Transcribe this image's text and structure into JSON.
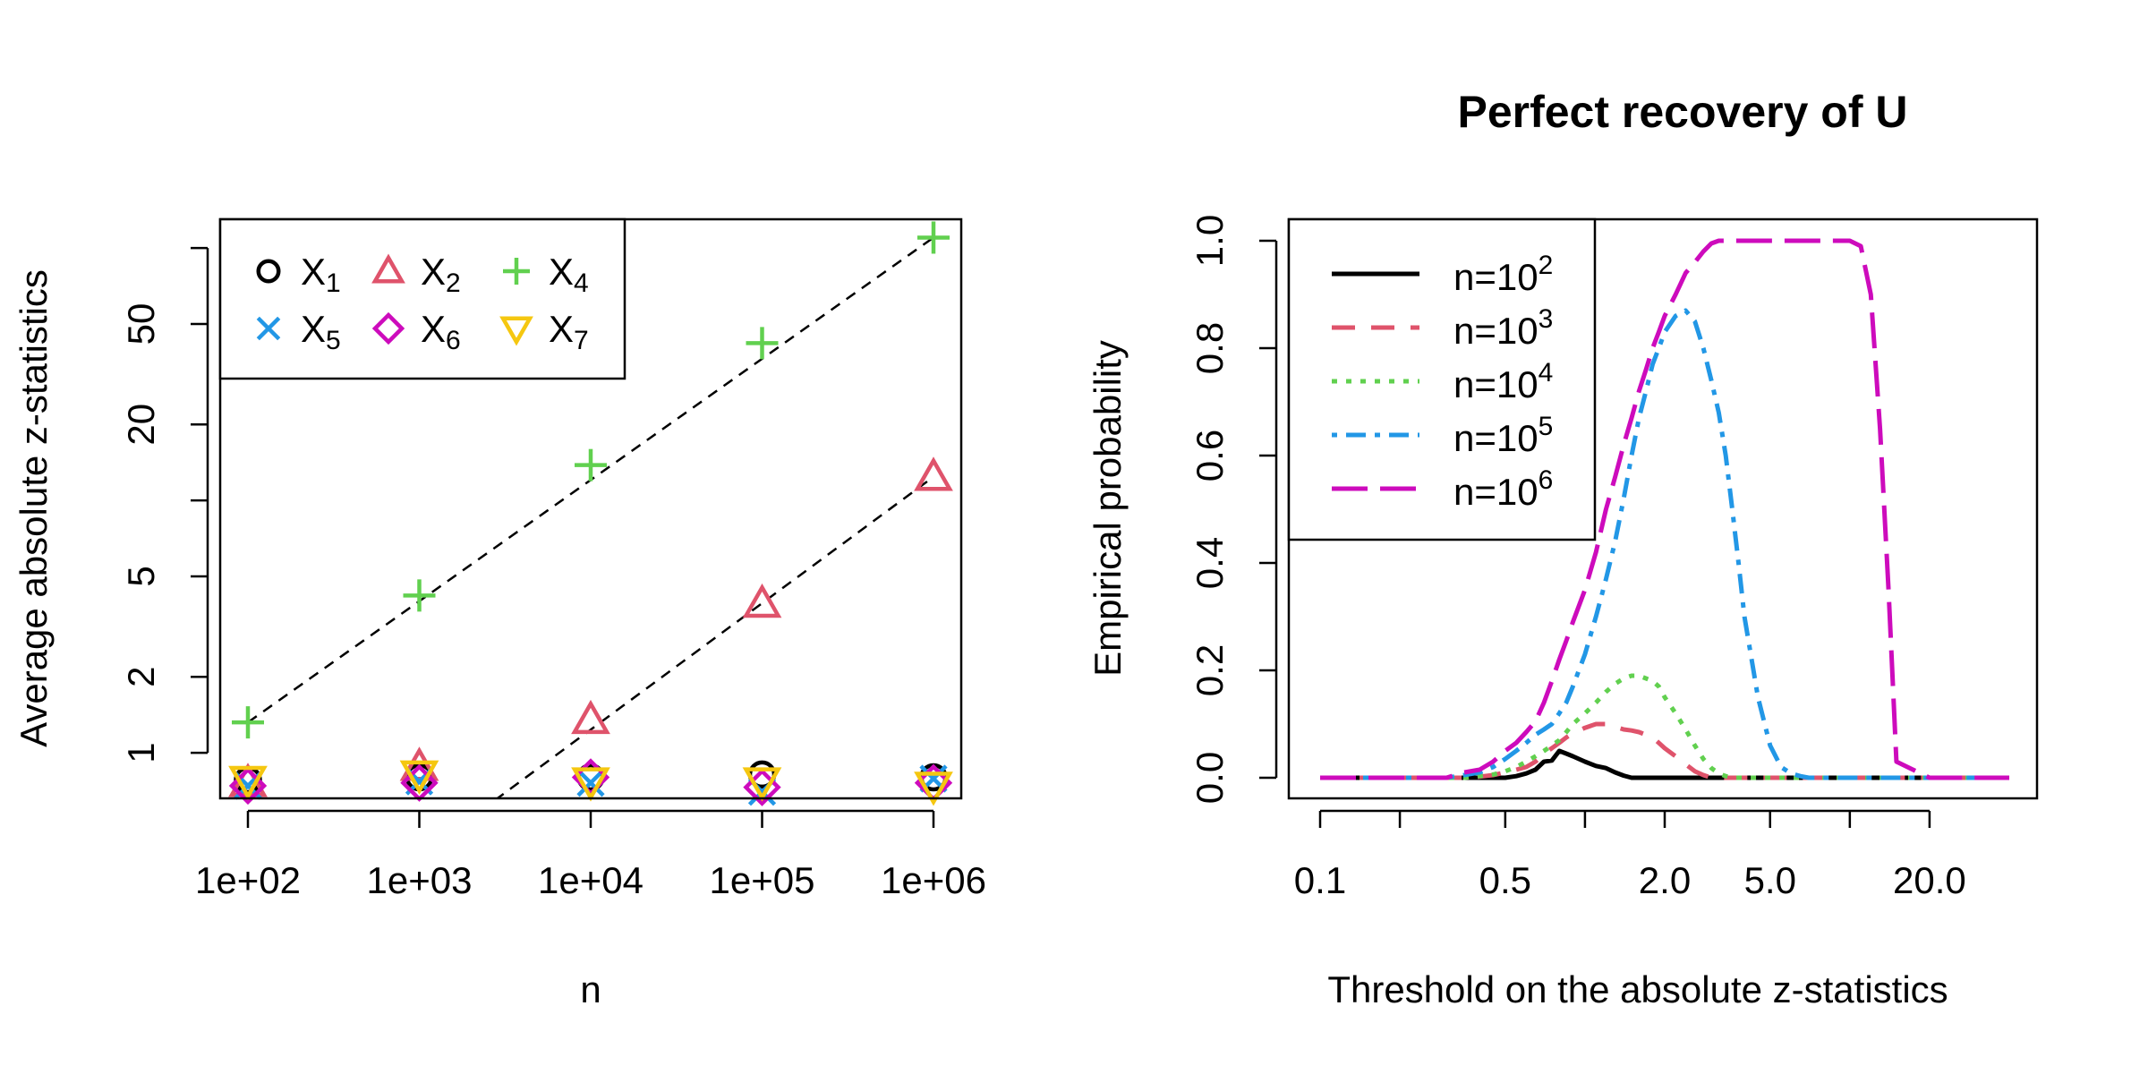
{
  "chart_data": [
    {
      "type": "scatter",
      "title": "",
      "xlabel": "n",
      "ylabel": "Average absolute z-statistics",
      "x_scale": "log",
      "y_scale": "log",
      "x_ticks": [
        "1e+02",
        "1e+03",
        "1e+04",
        "1e+05",
        "1e+06"
      ],
      "y_ticks": [
        "1",
        "2",
        "5",
        "20",
        "50"
      ],
      "y_minor_ticks": [
        10,
        100
      ],
      "xlim": [
        100,
        1000000
      ],
      "ylim": [
        0.66,
        130
      ],
      "x": [
        100,
        1000,
        10000,
        100000,
        1000000
      ],
      "legend": {
        "placement": "top-left",
        "ncol": 3
      },
      "series": [
        {
          "name": "X",
          "sub": "1",
          "symbol": "circle",
          "color": "#000000",
          "values": [
            0.78,
            0.8,
            0.8,
            0.82,
            0.8
          ]
        },
        {
          "name": "X",
          "sub": "2",
          "symbol": "triangle-up",
          "color": "#DF536B",
          "values": [
            0.76,
            0.88,
            1.35,
            3.9,
            12.4
          ]
        },
        {
          "name": "X",
          "sub": "4",
          "symbol": "plus",
          "color": "#61D04F",
          "values": [
            1.32,
            4.2,
            13.8,
            42,
            110
          ]
        },
        {
          "name": "X",
          "sub": "5",
          "symbol": "cross",
          "color": "#2297E6",
          "values": [
            0.74,
            0.77,
            0.76,
            0.7,
            0.79
          ]
        },
        {
          "name": "X",
          "sub": "6",
          "symbol": "diamond",
          "color": "#CD0BBC",
          "values": [
            0.74,
            0.76,
            0.8,
            0.73,
            0.76
          ]
        },
        {
          "name": "X",
          "sub": "7",
          "symbol": "triangle-down",
          "color": "#F5C710",
          "values": [
            0.78,
            0.82,
            0.77,
            0.77,
            0.74
          ]
        }
      ],
      "reference_lines": [
        {
          "style": "dashed",
          "color": "#000000",
          "from": [
            100,
            1.32
          ],
          "to": [
            1000000,
            110
          ]
        },
        {
          "style": "dashed",
          "color": "#000000",
          "from": [
            1000,
            0.39
          ],
          "to": [
            1000000,
            12.4
          ]
        }
      ]
    },
    {
      "type": "line",
      "title": "Perfect recovery of U",
      "xlabel": "Threshold on the absolute z-statistics",
      "ylabel": "Empirical probability",
      "x_scale": "log",
      "x_ticks": [
        "0.1",
        "0.5",
        "2.0",
        "5.0",
        "20.0"
      ],
      "x_minor_ticks": [
        0.2,
        1.0,
        10.0
      ],
      "y_ticks": [
        "0.0",
        "0.2",
        "0.4",
        "0.6",
        "0.8",
        "1.0"
      ],
      "xlim": [
        0.1,
        40
      ],
      "ylim": [
        0,
        1
      ],
      "legend": {
        "placement": "top-left",
        "ncol": 1
      },
      "x": [
        0.1,
        0.15,
        0.2,
        0.25,
        0.3,
        0.35,
        0.4,
        0.45,
        0.5,
        0.55,
        0.6,
        0.65,
        0.7,
        0.75,
        0.8,
        0.85,
        0.9,
        1.0,
        1.1,
        1.2,
        1.3,
        1.4,
        1.5,
        1.6,
        1.7,
        1.8,
        1.9,
        2.0,
        2.2,
        2.4,
        2.6,
        2.8,
        3.0,
        3.2,
        3.4,
        3.6,
        3.8,
        4.0,
        4.5,
        5.0,
        5.5,
        6.0,
        6.5,
        7.0,
        8.0,
        9.0,
        10.0,
        11.0,
        12.0,
        13.0,
        14.0,
        15.0,
        20.0,
        30.0,
        40.0
      ],
      "series": [
        {
          "name": "n=10",
          "sup": "2",
          "color": "#000000",
          "dash": "solid",
          "values": [
            0,
            0,
            0,
            0,
            0,
            0,
            0,
            0,
            0,
            0.003,
            0.008,
            0.015,
            0.03,
            0.032,
            0.05,
            0.045,
            0.04,
            0.03,
            0.022,
            0.018,
            0.01,
            0.004,
            0,
            0,
            0,
            0,
            0,
            0,
            0,
            0,
            0,
            0,
            0,
            0,
            0,
            0,
            0,
            0,
            0,
            0,
            0,
            0,
            0,
            0,
            0,
            0,
            0,
            0,
            0,
            0,
            0,
            0,
            0,
            0,
            0
          ]
        },
        {
          "name": "n=10",
          "sup": "3",
          "color": "#DF536B",
          "dash": "long",
          "values": [
            0,
            0,
            0,
            0,
            0,
            0,
            0.002,
            0.005,
            0.01,
            0.015,
            0.02,
            0.03,
            0.045,
            0.055,
            0.065,
            0.075,
            0.083,
            0.093,
            0.1,
            0.1,
            0.095,
            0.09,
            0.088,
            0.085,
            0.08,
            0.075,
            0.065,
            0.055,
            0.04,
            0.025,
            0.012,
            0.005,
            0,
            0,
            0,
            0,
            0,
            0,
            0,
            0,
            0,
            0,
            0,
            0,
            0,
            0,
            0,
            0,
            0,
            0,
            0,
            0,
            0,
            0,
            0
          ]
        },
        {
          "name": "n=10",
          "sup": "4",
          "color": "#61D04F",
          "dash": "dotted",
          "values": [
            0,
            0,
            0,
            0,
            0,
            0,
            0.003,
            0.006,
            0.012,
            0.02,
            0.03,
            0.04,
            0.05,
            0.06,
            0.07,
            0.085,
            0.1,
            0.12,
            0.14,
            0.16,
            0.175,
            0.185,
            0.19,
            0.19,
            0.185,
            0.18,
            0.17,
            0.15,
            0.12,
            0.09,
            0.06,
            0.035,
            0.018,
            0.008,
            0.003,
            0,
            0,
            0,
            0,
            0,
            0,
            0,
            0,
            0,
            0,
            0,
            0,
            0,
            0,
            0,
            0,
            0,
            0,
            0,
            0
          ]
        },
        {
          "name": "n=10",
          "sup": "5",
          "color": "#2297E6",
          "dash": "dotdash",
          "values": [
            0,
            0,
            0,
            0,
            0,
            0.005,
            0.01,
            0.02,
            0.035,
            0.05,
            0.065,
            0.08,
            0.09,
            0.1,
            0.12,
            0.14,
            0.17,
            0.23,
            0.3,
            0.37,
            0.44,
            0.52,
            0.6,
            0.67,
            0.72,
            0.77,
            0.8,
            0.83,
            0.86,
            0.87,
            0.85,
            0.8,
            0.74,
            0.68,
            0.6,
            0.5,
            0.4,
            0.3,
            0.15,
            0.06,
            0.02,
            0.008,
            0.003,
            0,
            0,
            0,
            0,
            0,
            0,
            0,
            0,
            0,
            0,
            0,
            0
          ]
        },
        {
          "name": "n=10",
          "sup": "6",
          "color": "#CD0BBC",
          "dash": "longlong",
          "values": [
            0,
            0,
            0,
            0,
            0,
            0.01,
            0.015,
            0.03,
            0.05,
            0.065,
            0.085,
            0.105,
            0.14,
            0.18,
            0.22,
            0.255,
            0.29,
            0.35,
            0.42,
            0.5,
            0.56,
            0.62,
            0.67,
            0.72,
            0.76,
            0.8,
            0.83,
            0.86,
            0.9,
            0.94,
            0.96,
            0.98,
            0.995,
            1,
            1,
            1,
            1,
            1,
            1,
            1,
            1,
            1,
            1,
            1,
            1,
            1,
            1,
            0.99,
            0.9,
            0.65,
            0.35,
            0.03,
            0,
            0,
            0
          ]
        }
      ]
    }
  ]
}
